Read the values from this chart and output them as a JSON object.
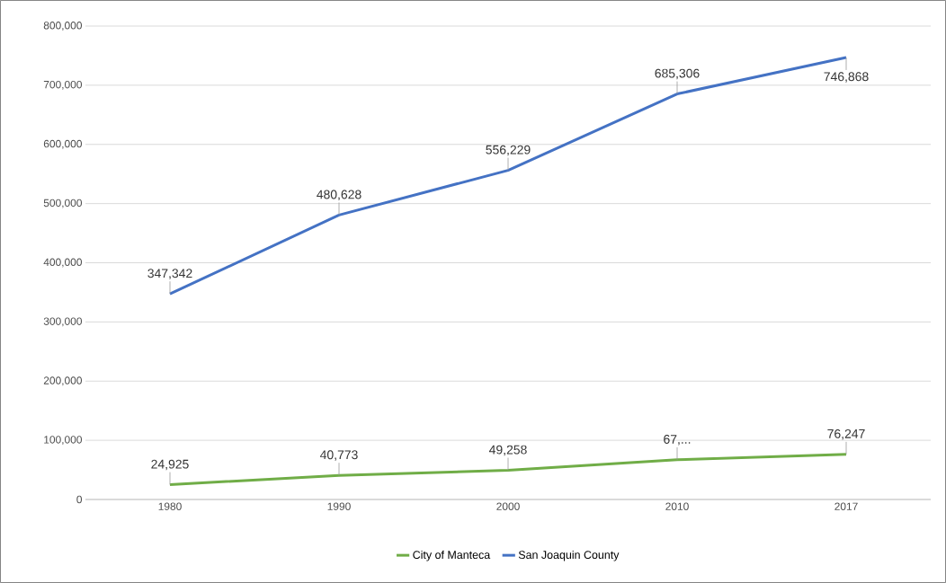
{
  "chart_data": {
    "type": "line",
    "categories": [
      "1980",
      "1990",
      "2000",
      "2010",
      "2017"
    ],
    "series": [
      {
        "name": "City of Manteca",
        "color": "#70ad47",
        "values": [
          24925,
          40773,
          49258,
          67000,
          76247
        ],
        "value_labels": [
          "24,925",
          "40,773",
          "49,258",
          "67,...",
          "76,247"
        ]
      },
      {
        "name": "San Joaquin County",
        "color": "#4472c4",
        "values": [
          347342,
          480628,
          556229,
          685306,
          746868
        ],
        "value_labels": [
          "347,342",
          "480,628",
          "556,229",
          "685,306",
          "746,868"
        ]
      }
    ],
    "ylim": [
      0,
      800000
    ],
    "yticks": [
      {
        "value": 0,
        "label": "0"
      },
      {
        "value": 100000,
        "label": "100,000"
      },
      {
        "value": 200000,
        "label": "200,000"
      },
      {
        "value": 300000,
        "label": "300,000"
      },
      {
        "value": 400000,
        "label": "400,000"
      },
      {
        "value": 500000,
        "label": "500,000"
      },
      {
        "value": 600000,
        "label": "600,000"
      },
      {
        "value": 700000,
        "label": "700,000"
      },
      {
        "value": 800000,
        "label": "800,000"
      }
    ],
    "grid": "y",
    "legend": "bottom",
    "marker": "none",
    "line_style": "solid"
  }
}
